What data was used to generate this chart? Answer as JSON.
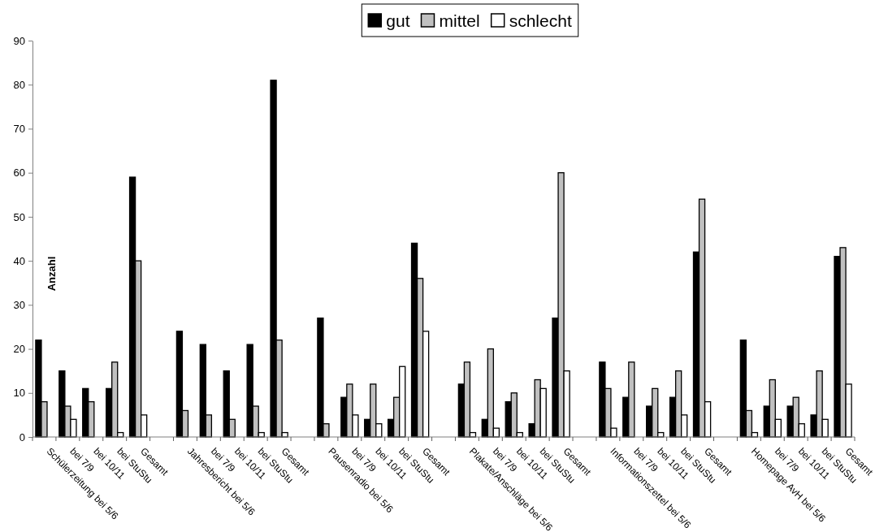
{
  "chart_data": {
    "type": "bar",
    "ylabel": "Anzahl",
    "categories": [
      "Schülerzeitung bei 5/6",
      "bei 7/9",
      "bei 10/11",
      "bei StuStu",
      "Gesamt",
      null,
      "Jahresbericht bei 5/6",
      "bei 7/9",
      "bei 10/11",
      "bei StuStu",
      "Gesamt",
      null,
      "Pausenradio bei 5/6",
      "bei 7/9",
      "bei 10/11",
      "bei StuStu",
      "Gesamt",
      null,
      "Plakate/Anschläge bei 5/6",
      "bei 7/9",
      "bei 10/11",
      "bei StuStu",
      "Gesamt",
      null,
      "Informationszettel bei 5/6",
      "bei 7/9",
      "bei 10/11",
      "bei StuStu",
      "Gesamt",
      null,
      "Homepage AvH bei 5/6",
      "bei 7/9",
      "bei 10/11",
      "bei StuStu",
      "Gesamt"
    ],
    "series": [
      {
        "name": "gut",
        "color": "#000000",
        "values": [
          22,
          15,
          11,
          11,
          59,
          null,
          24,
          21,
          15,
          21,
          81,
          null,
          27,
          9,
          4,
          4,
          44,
          null,
          12,
          4,
          8,
          3,
          27,
          null,
          17,
          9,
          7,
          9,
          42,
          null,
          22,
          7,
          7,
          5,
          41
        ]
      },
      {
        "name": "mittel",
        "color": "#c0c0c0",
        "values": [
          8,
          7,
          8,
          17,
          40,
          null,
          6,
          5,
          4,
          7,
          22,
          null,
          3,
          12,
          12,
          9,
          36,
          null,
          17,
          20,
          10,
          13,
          60,
          null,
          11,
          17,
          11,
          15,
          54,
          null,
          6,
          13,
          9,
          15,
          43
        ]
      },
      {
        "name": "schlecht",
        "color": "#ffffff",
        "values": [
          0,
          4,
          0,
          1,
          5,
          null,
          0,
          0,
          0,
          1,
          1,
          null,
          0,
          5,
          3,
          16,
          24,
          null,
          1,
          2,
          1,
          11,
          15,
          null,
          2,
          0,
          1,
          5,
          8,
          null,
          1,
          4,
          3,
          4,
          12
        ]
      }
    ],
    "ylim": [
      0,
      90
    ],
    "yticks": [
      0,
      10,
      20,
      30,
      40,
      50,
      60,
      70,
      80,
      90
    ],
    "legend": "top"
  }
}
